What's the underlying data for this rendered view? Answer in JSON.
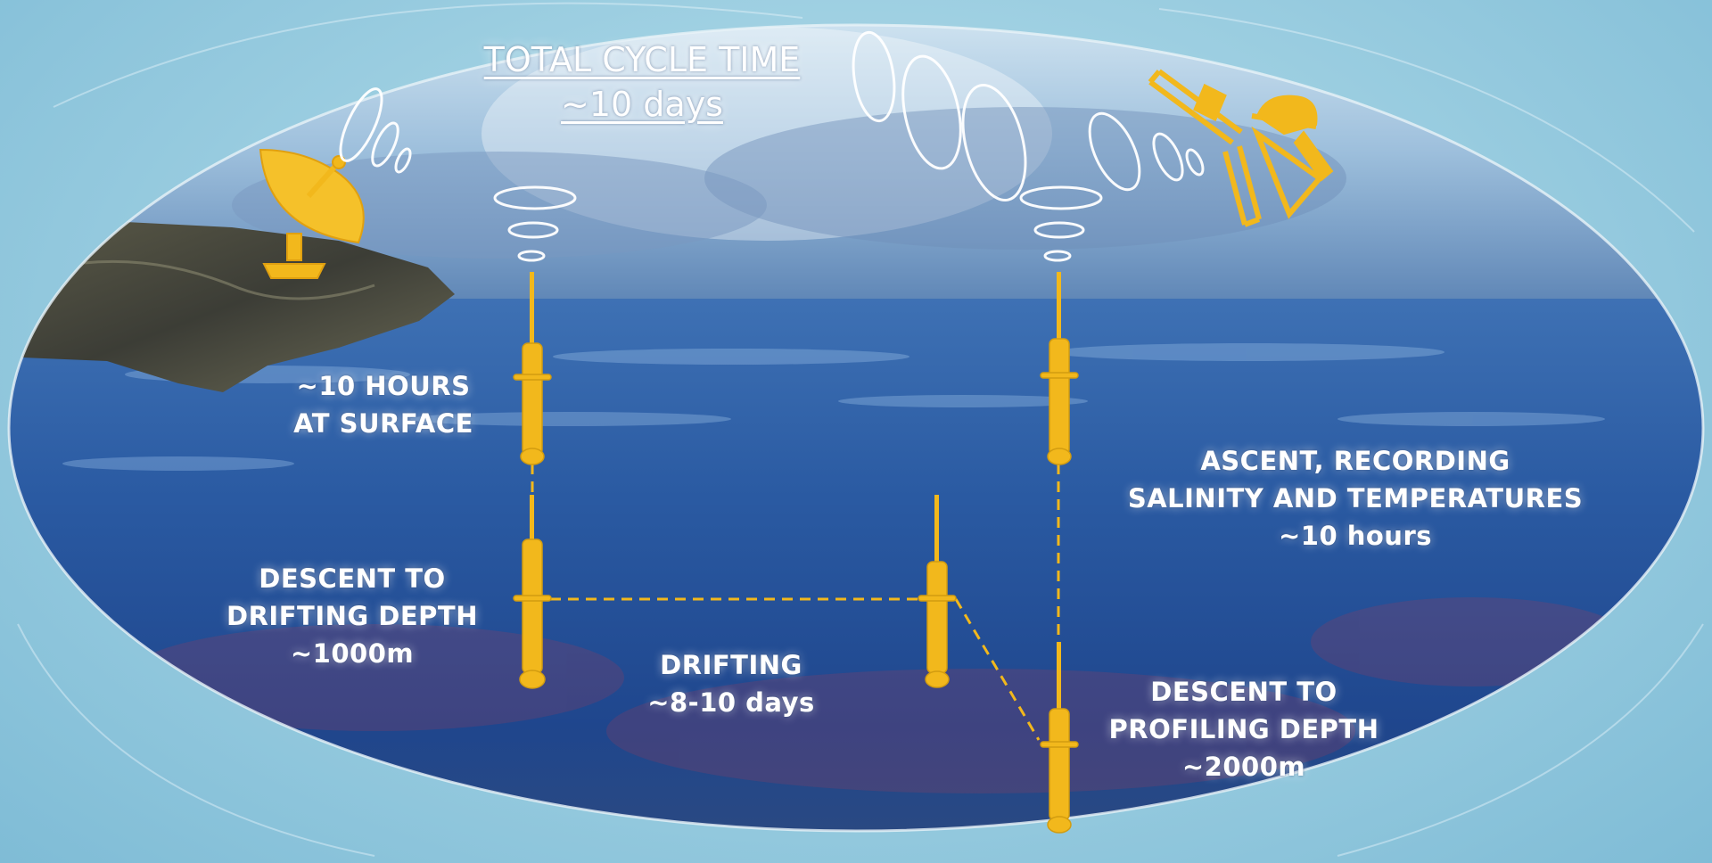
{
  "title": {
    "line1": "TOTAL CYCLE TIME",
    "line2": "~10 days"
  },
  "labels": {
    "surface": [
      "~10 HOURS",
      "AT SURFACE"
    ],
    "descent_drifting": [
      "DESCENT TO",
      "DRIFTING DEPTH",
      "~1000m"
    ],
    "drifting": [
      "DRIFTING",
      "~8-10 days"
    ],
    "ascent": [
      "ASCENT, RECORDING",
      "SALINITY AND TEMPERATURES",
      "~10 hours"
    ],
    "descent_profiling": [
      "DESCENT TO",
      "PROFILING DEPTH",
      "~2000m"
    ]
  },
  "icons": [
    "ground-station-dish-icon",
    "satellite-icon",
    "profiling-float-icon",
    "signal-wave-icon"
  ],
  "colors": {
    "float": "#f2b81c",
    "sea_deep": "#1c3f86",
    "sea_mid": "#2f62a8",
    "sky": "#a9cde6",
    "label_text": "#ffffff",
    "background": "#9fd0e2"
  }
}
